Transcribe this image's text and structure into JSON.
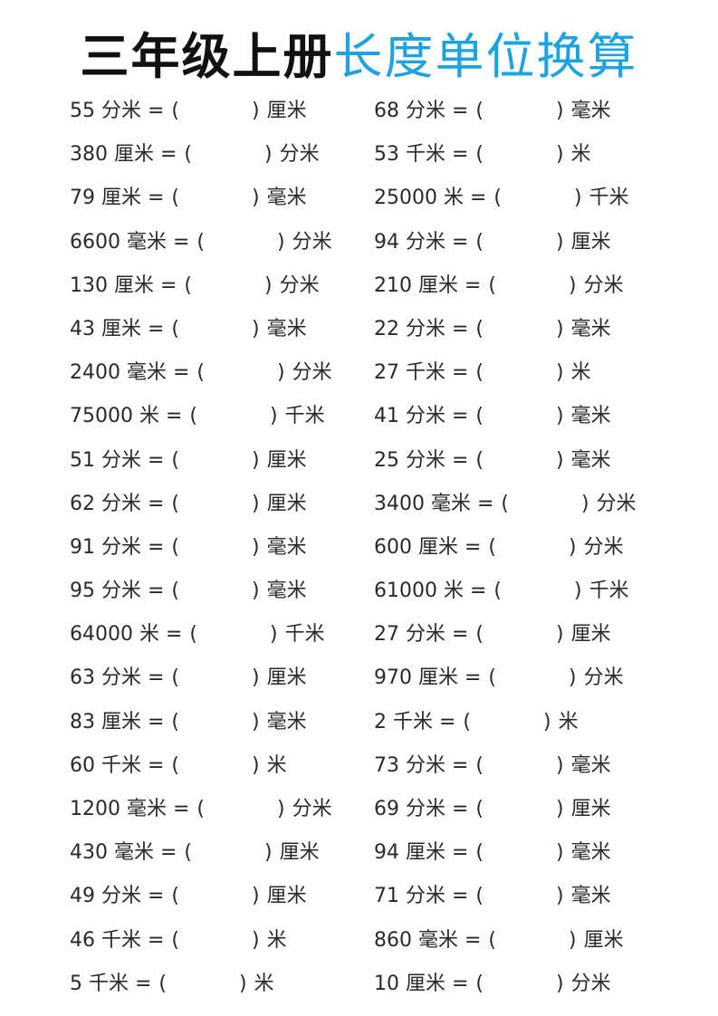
{
  "title": {
    "part1": "三年级上册",
    "part2": "长度单位换算",
    "accent_color": "#1aa3e0"
  },
  "rows": [
    {
      "left": {
        "q": "55 分米 =",
        "unit": "厘米"
      },
      "right": {
        "q": "68 分米 =",
        "unit": "毫米"
      }
    },
    {
      "left": {
        "q": "380 厘米 =",
        "unit": "分米"
      },
      "right": {
        "q": "53 千米 =",
        "unit": "米"
      }
    },
    {
      "left": {
        "q": "79 厘米 =",
        "unit": "毫米"
      },
      "right": {
        "q": "25000 米 =",
        "unit": "千米"
      }
    },
    {
      "left": {
        "q": "6600 毫米 =",
        "unit": "分米"
      },
      "right": {
        "q": "94 分米 =",
        "unit": "厘米"
      }
    },
    {
      "left": {
        "q": "130 厘米 =",
        "unit": "分米"
      },
      "right": {
        "q": "210 厘米 =",
        "unit": "分米"
      }
    },
    {
      "left": {
        "q": "43 厘米 =",
        "unit": "毫米"
      },
      "right": {
        "q": "22 分米 =",
        "unit": "毫米"
      }
    },
    {
      "left": {
        "q": "2400 毫米 =",
        "unit": "分米"
      },
      "right": {
        "q": "27 千米 =",
        "unit": "米"
      }
    },
    {
      "left": {
        "q": "75000 米 =",
        "unit": "千米"
      },
      "right": {
        "q": "41 分米 =",
        "unit": "毫米"
      }
    },
    {
      "left": {
        "q": "51 分米 =",
        "unit": "厘米"
      },
      "right": {
        "q": "25 分米 =",
        "unit": "毫米"
      }
    },
    {
      "left": {
        "q": "62 分米 =",
        "unit": "厘米"
      },
      "right": {
        "q": "3400 毫米 =",
        "unit": "分米"
      }
    },
    {
      "left": {
        "q": "91 分米 =",
        "unit": "毫米"
      },
      "right": {
        "q": "600 厘米 =",
        "unit": "分米"
      }
    },
    {
      "left": {
        "q": "95 分米 =",
        "unit": "毫米"
      },
      "right": {
        "q": "61000 米 =",
        "unit": "千米"
      }
    },
    {
      "left": {
        "q": "64000 米 =",
        "unit": "千米"
      },
      "right": {
        "q": "27 分米 =",
        "unit": "厘米"
      }
    },
    {
      "left": {
        "q": "63 分米 =",
        "unit": "厘米"
      },
      "right": {
        "q": "970 厘米 =",
        "unit": "分米"
      }
    },
    {
      "left": {
        "q": "83 厘米 =",
        "unit": "毫米"
      },
      "right": {
        "q": "2 千米 =",
        "unit": "米"
      }
    },
    {
      "left": {
        "q": "60 千米 =",
        "unit": "米"
      },
      "right": {
        "q": "73 分米 =",
        "unit": "毫米"
      }
    },
    {
      "left": {
        "q": "1200 毫米 =",
        "unit": "分米"
      },
      "right": {
        "q": "69 分米 =",
        "unit": "厘米"
      }
    },
    {
      "left": {
        "q": "430 毫米 =",
        "unit": "厘米"
      },
      "right": {
        "q": "94 厘米 =",
        "unit": "毫米"
      }
    },
    {
      "left": {
        "q": "49 分米 =",
        "unit": "厘米"
      },
      "right": {
        "q": "71 分米 =",
        "unit": "毫米"
      }
    },
    {
      "left": {
        "q": "46 千米 =",
        "unit": "米"
      },
      "right": {
        "q": "860 毫米 =",
        "unit": "厘米"
      }
    },
    {
      "left": {
        "q": "5 千米 =",
        "unit": "米"
      },
      "right": {
        "q": "10 厘米 =",
        "unit": "分米"
      }
    }
  ]
}
